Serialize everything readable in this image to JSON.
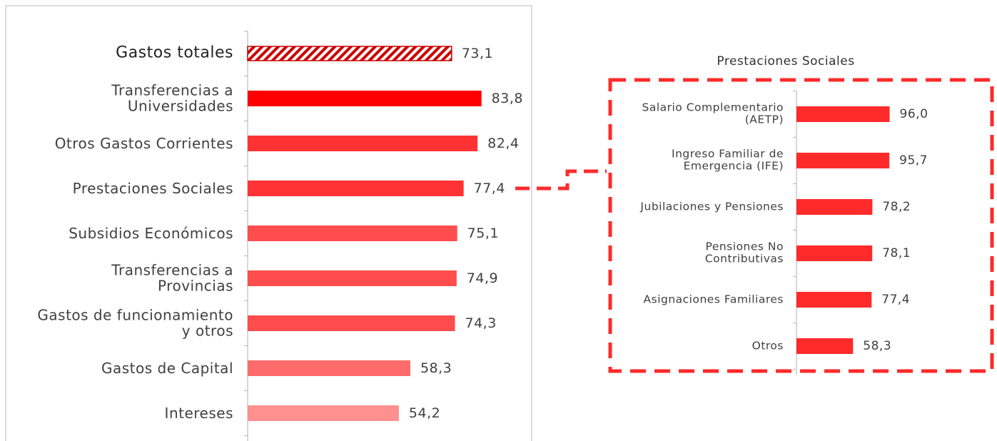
{
  "chart_data": [
    {
      "type": "barh",
      "categories": [
        "Gastos totales",
        "Transferencias a\nUniversidades",
        "Otros Gastos Corrientes",
        "Prestaciones Sociales",
        "Subsidios Económicos",
        "Transferencias a\nProvincias",
        "Gastos de funcionamiento\ny otros",
        "Gastos de Capital",
        "Intereses"
      ],
      "values": [
        73.1,
        83.8,
        82.4,
        77.4,
        75.1,
        74.9,
        74.3,
        58.3,
        54.2
      ],
      "value_labels": [
        "73,1",
        "83,8",
        "82,4",
        "77,4",
        "75,1",
        "74,9",
        "74,3",
        "58,3",
        "54,2"
      ],
      "colors": [
        "#cc0000",
        "#ff0000",
        "#ff3333",
        "#ff3333",
        "#ff4d4d",
        "#ff4d4d",
        "#ff4d4d",
        "#ff6b6b",
        "#ff9090"
      ],
      "hatched_index": 0,
      "xlim": [
        0,
        100
      ]
    },
    {
      "type": "barh",
      "title": "Prestaciones Sociales",
      "categories": [
        "Salario Complementario\n(AETP)",
        "Ingreso Familiar de\nEmergencia (IFE)",
        "Jubilaciones y Pensiones",
        "Pensiones No\nContributivas",
        "Asignaciones Familiares",
        "Otros"
      ],
      "values": [
        96.0,
        95.7,
        78.2,
        78.1,
        77.4,
        58.3
      ],
      "value_labels": [
        "96,0",
        "95,7",
        "78,2",
        "78,1",
        "77,4",
        "58,3"
      ],
      "color": "#ff2a2a",
      "xlim": [
        0,
        100
      ]
    }
  ]
}
